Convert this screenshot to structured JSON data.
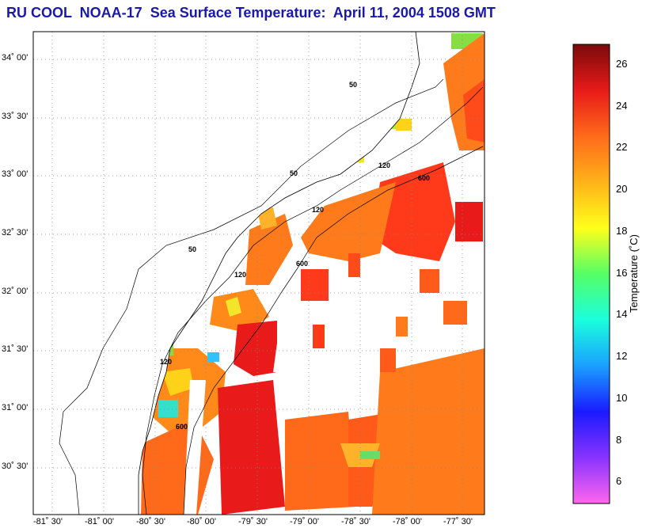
{
  "title": "RU COOL  NOAA-17  Sea Surface Temperature:  April 11, 2004 1508 GMT",
  "lat_labels": [
    "34˚ 00'",
    "33˚ 30'",
    "33˚ 00'",
    "32˚ 30'",
    "32˚ 00'",
    "31˚ 30'",
    "31˚ 00'",
    "30˚ 30'"
  ],
  "lon_labels": [
    "-81˚ 30'",
    "-81˚ 00'",
    "-80˚ 30'",
    "-80˚ 00'",
    "-79˚ 30'",
    "-79˚ 00'",
    "-78˚ 30'",
    "-78˚ 00'",
    "-77˚ 30'"
  ],
  "contour_labels": {
    "c50": "50",
    "c120": "120",
    "c600": "600"
  },
  "colorbar": {
    "label": "Temperature (˚C)",
    "ticks": [
      "26",
      "24",
      "22",
      "20",
      "18",
      "16",
      "14",
      "12",
      "10",
      "8",
      "6"
    ],
    "range": [
      5,
      27
    ]
  },
  "colors": {
    "title": "#1a1aa8",
    "land": "#ffffff",
    "grid": "#888888"
  }
}
